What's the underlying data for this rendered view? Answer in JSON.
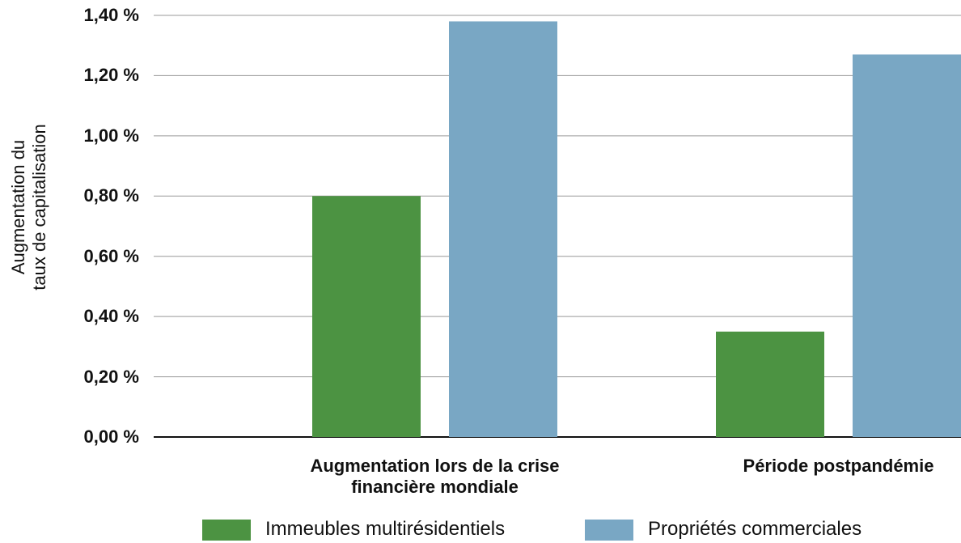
{
  "chart_data": {
    "type": "bar",
    "ylabel": "Augmentation du\ntaux de capitalisation",
    "categories": [
      "Augmentation lors de la crise\nfinancière mondiale",
      "Période postpandémie"
    ],
    "series": [
      {
        "name": "Immeubles multirésidentiels",
        "color": "#4c9342",
        "values": [
          0.8,
          0.35
        ]
      },
      {
        "name": "Propriétés commerciales",
        "color": "#79a7c4",
        "values": [
          1.38,
          1.27
        ]
      }
    ],
    "ylim": [
      0,
      1.4
    ],
    "yticks": [
      {
        "value": 0,
        "label": "0,00 %"
      },
      {
        "value": 0.2,
        "label": "0,20 %"
      },
      {
        "value": 0.4,
        "label": "0,40 %"
      },
      {
        "value": 0.6,
        "label": "0,60 %"
      },
      {
        "value": 0.8,
        "label": "0,80 %"
      },
      {
        "value": 1.0,
        "label": "1,00 %"
      },
      {
        "value": 1.2,
        "label": "1,20 %"
      },
      {
        "value": 1.4,
        "label": "1,40 %"
      }
    ],
    "grid": true
  }
}
